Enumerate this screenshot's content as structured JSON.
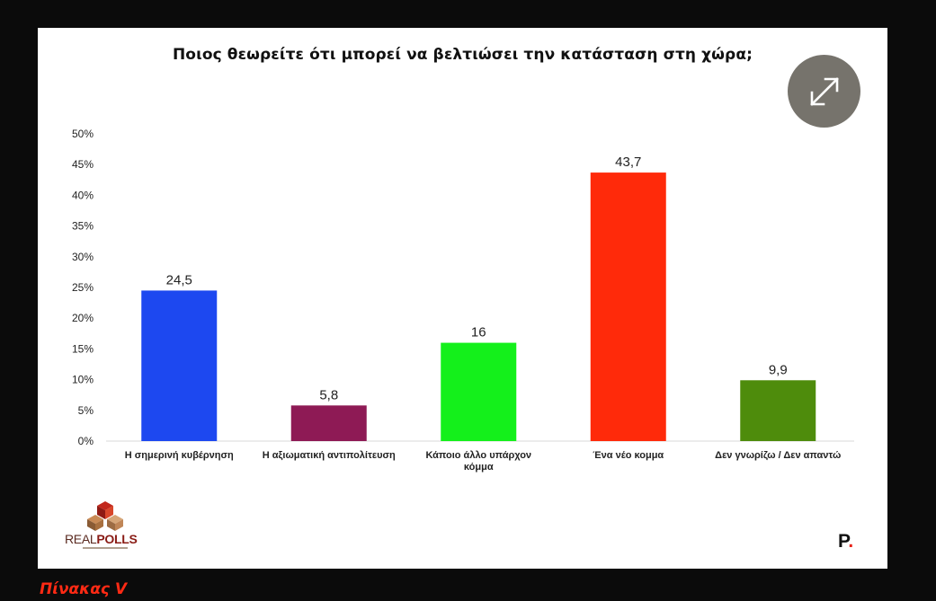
{
  "chart_data": {
    "type": "bar",
    "title": "Ποιος θεωρείτε ότι μπορεί να βελτιώσει την κατάσταση στη χώρα;",
    "categories": [
      [
        "Η σημερινή  κυβέρνηση"
      ],
      [
        "Η αξιωματική  αντιπολίτευση"
      ],
      [
        "Κάποιο άλλο  υπάρχον",
        "κόμμα"
      ],
      [
        "Ένα νέο κομμα"
      ],
      [
        "Δεν γνωρίζω  /  Δεν απαντώ"
      ]
    ],
    "values": [
      24.5,
      5.8,
      16,
      43.7,
      9.9
    ],
    "value_labels": [
      "24,5",
      "5,8",
      "16",
      "43,7",
      "9,9"
    ],
    "colors": [
      "#1d48f0",
      "#8e1a55",
      "#14f01b",
      "#ff2a0a",
      "#4e8c0c"
    ],
    "yticks": [
      "0%",
      "5%",
      "10%",
      "15%",
      "20%",
      "25%",
      "30%",
      "35%",
      "40%",
      "45%",
      "50%"
    ],
    "ylim": [
      0,
      50
    ],
    "grid": false,
    "legend": "none"
  },
  "branding": {
    "realpolls_logo_text_a": "REAL",
    "realpolls_logo_text_b": "POLLS",
    "p_logo_letter": "P",
    "p_logo_dot": "."
  },
  "caption": "Πίνακας V",
  "icons": {
    "expand": "expand-arrows-icon"
  }
}
